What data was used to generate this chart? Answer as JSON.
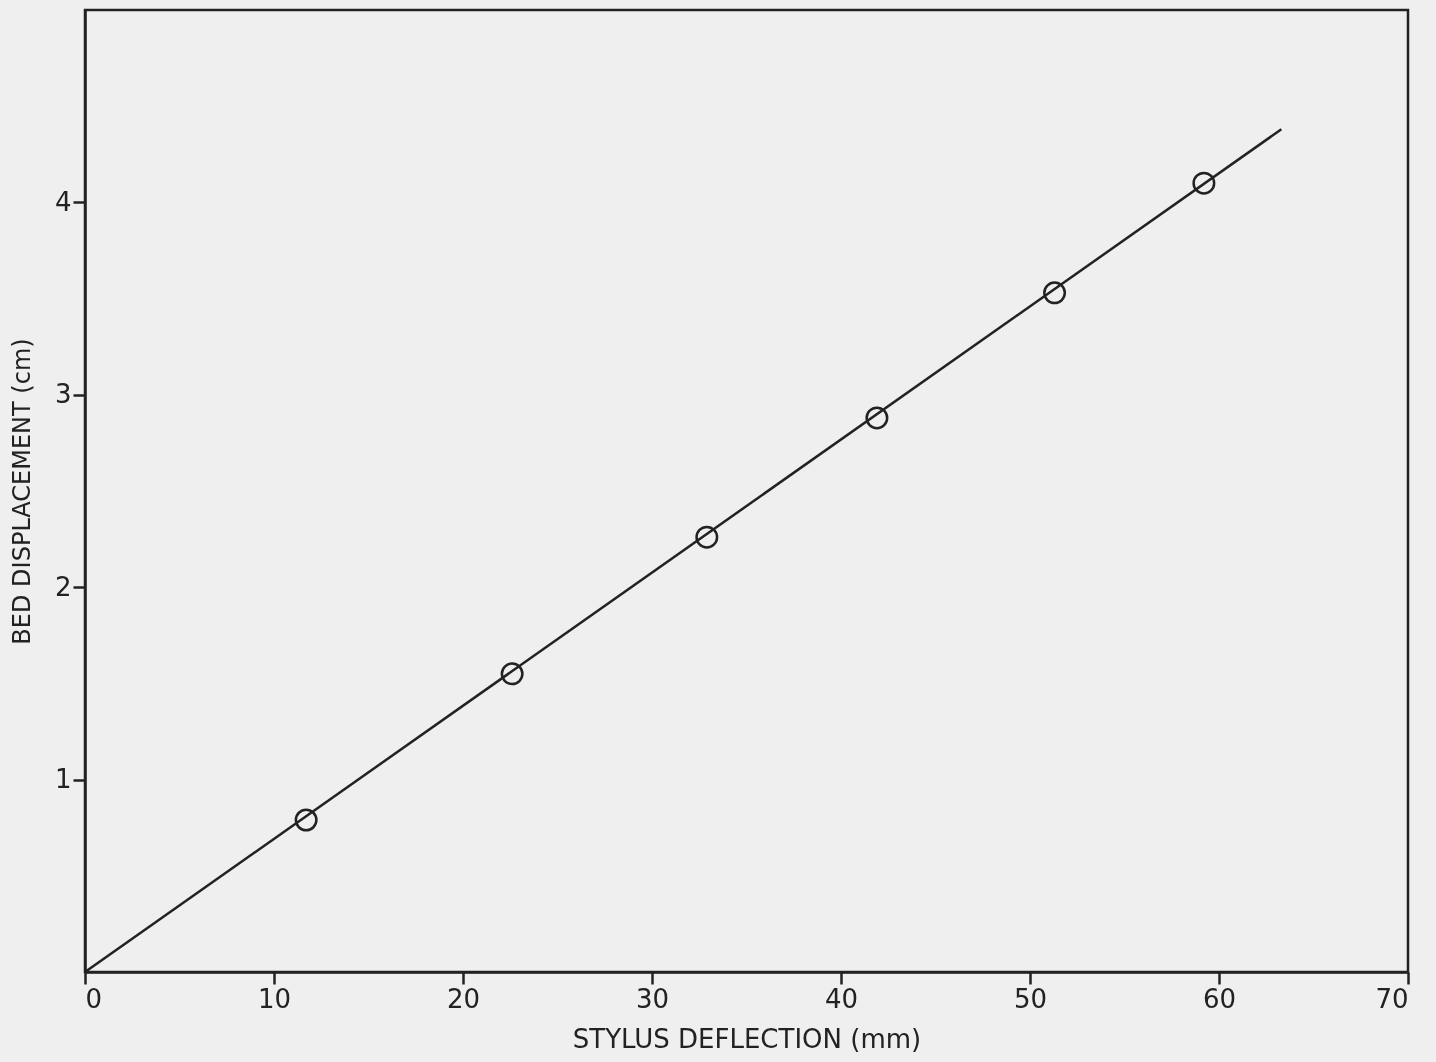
{
  "chart_data": {
    "type": "scatter",
    "xlabel": "STYLUS DEFLECTION (mm)",
    "ylabel": "BED DISPLACEMENT (cm)",
    "x": [
      11.7,
      22.6,
      32.9,
      41.9,
      51.3,
      59.2
    ],
    "series": [
      {
        "color": "#222222",
        "values": [
          0.79,
          1.55,
          2.26,
          2.88,
          3.53,
          4.1
        ],
        "marker": "circle"
      },
      {
        "type": "line",
        "color": "#222222",
        "x": [
          0,
          63.3
        ],
        "values": [
          0,
          4.38
        ],
        "line_style": "solid"
      }
    ],
    "xlim": [
      0,
      70
    ],
    "xticks": [
      0,
      10,
      20,
      30,
      40,
      50,
      60,
      70
    ],
    "ylim": [
      0,
      5
    ],
    "yticks": [
      1,
      2,
      3,
      4
    ],
    "grid": false
  }
}
